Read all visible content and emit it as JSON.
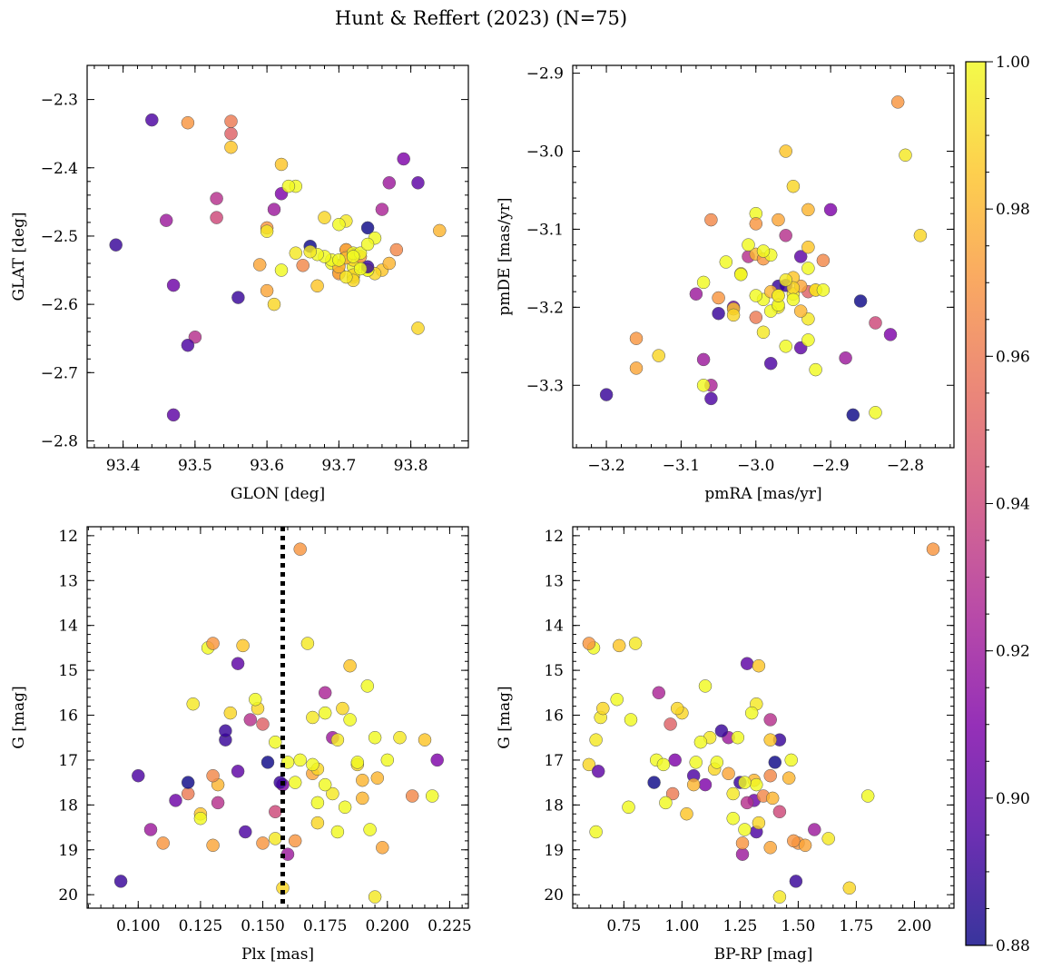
{
  "chart_data": {
    "type": "scatter",
    "title": "Hunt & Reffert (2023) (N=75)",
    "colorbar": {
      "vmin": 0.88,
      "vmax": 1.0,
      "cmap": "plasma",
      "ticks": [
        0.88,
        0.9,
        0.92,
        0.94,
        0.96,
        0.98,
        1.0
      ],
      "tick_labels": [
        "0.88",
        "0.90",
        "0.92",
        "0.94",
        "0.96",
        "0.98",
        "1.00"
      ]
    },
    "stars": {
      "c": [
        0.89,
        0.895,
        0.92,
        0.97,
        0.905,
        0.96,
        0.985,
        0.975,
        0.93,
        0.89,
        0.9,
        0.895,
        0.93,
        0.95,
        0.88,
        0.94,
        0.91,
        0.92,
        0.97,
        0.995,
        0.975,
        0.99,
        0.925,
        0.92,
        1.0,
        1.0,
        0.985,
        0.99,
        0.98,
        1.0,
        0.995,
        0.975,
        1.0,
        0.995,
        0.965,
        0.985,
        0.91,
        0.88,
        0.995,
        1.0,
        1.0,
        0.97,
        0.98,
        0.89,
        0.99,
        0.9,
        0.985,
        0.99,
        0.97,
        1.0,
        0.89,
        0.99,
        0.97,
        0.995,
        1.0,
        1.0,
        0.995,
        0.99,
        1.0,
        0.98,
        1.0,
        1.0,
        1.0,
        1.0,
        0.995,
        1.0,
        1.0,
        1.0,
        1.0,
        0.995,
        1.0,
        0.98,
        0.99,
        1.0,
        0.965
      ],
      "glon": [
        93.39,
        93.44,
        93.46,
        93.49,
        93.47,
        93.55,
        93.55,
        93.59,
        93.5,
        93.56,
        93.47,
        93.49,
        93.53,
        93.55,
        93.66,
        93.53,
        93.62,
        93.61,
        93.6,
        93.6,
        93.6,
        93.61,
        93.76,
        93.77,
        93.72,
        93.73,
        93.76,
        93.75,
        93.77,
        93.74,
        93.7,
        93.7,
        93.69,
        93.71,
        93.65,
        93.62,
        93.79,
        93.74,
        93.71,
        93.72,
        93.75,
        93.7,
        93.7,
        93.72,
        93.72,
        93.81,
        93.67,
        93.72,
        93.71,
        93.74,
        93.74,
        93.72,
        93.73,
        93.71,
        93.64,
        93.62,
        93.64,
        93.68,
        93.69,
        93.71,
        93.7,
        93.72,
        93.73,
        93.74,
        93.71,
        93.72,
        93.73,
        93.68,
        93.67,
        93.66,
        93.7,
        93.84,
        93.81,
        93.63,
        93.78
      ],
      "glat": [
        -2.513,
        -2.33,
        -2.477,
        -2.334,
        -2.572,
        -2.332,
        -2.37,
        -2.542,
        -2.648,
        -2.59,
        -2.762,
        -2.66,
        -2.445,
        -2.35,
        -2.515,
        -2.473,
        -2.438,
        -2.461,
        -2.488,
        -2.493,
        -2.58,
        -2.6,
        -2.461,
        -2.422,
        -2.56,
        -2.545,
        -2.55,
        -2.555,
        -2.54,
        -2.55,
        -2.553,
        -2.543,
        -2.54,
        -2.52,
        -2.543,
        -2.395,
        -2.387,
        -2.488,
        -2.53,
        -2.545,
        -2.503,
        -2.555,
        -2.545,
        -2.527,
        -2.535,
        -2.422,
        -2.573,
        -2.557,
        -2.52,
        -2.55,
        -2.545,
        -2.565,
        -2.53,
        -2.478,
        -2.427,
        -2.55,
        -2.525,
        -2.473,
        -2.535,
        -2.532,
        -2.535,
        -2.525,
        -2.525,
        -2.512,
        -2.56,
        -2.53,
        -2.548,
        -2.53,
        -2.527,
        -2.523,
        -2.483,
        -2.492,
        -2.635,
        -2.427,
        -2.52
      ],
      "pmra": [
        -3.2,
        -3.06,
        -3.07,
        -3.05,
        -3.03,
        -3.0,
        -2.96,
        -2.97,
        -2.96,
        -2.97,
        -2.94,
        -2.98,
        -3.01,
        -2.93,
        -2.86,
        -2.84,
        -2.82,
        -2.88,
        -2.81,
        -2.8,
        -3.16,
        -3.13,
        -3.06,
        -3.08,
        -3.07,
        -3.04,
        -3.03,
        -3.02,
        -3.0,
        -2.99,
        -2.95,
        -2.94,
        -2.93,
        -2.92,
        -2.91,
        -2.95,
        -2.9,
        -2.87,
        -2.97,
        -3.0,
        -3.01,
        -2.99,
        -2.98,
        -2.96,
        -2.95,
        -2.94,
        -2.93,
        -2.92,
        -3.16,
        -3.07,
        -3.05,
        -3.03,
        -3.0,
        -2.99,
        -2.98,
        -2.97,
        -2.96,
        -2.95,
        -2.93,
        -2.93,
        -2.92,
        -2.91,
        -2.95,
        -2.97,
        -2.93,
        -3.0,
        -2.98,
        -3.02,
        -2.99,
        -2.97,
        -2.96,
        -2.94,
        -2.78,
        -2.84,
        -3.06
      ],
      "pmde": [
        -3.312,
        -3.317,
        -3.267,
        -3.188,
        -3.2,
        -3.213,
        -3.0,
        -3.088,
        -3.108,
        -3.173,
        -3.252,
        -3.272,
        -3.135,
        -3.18,
        -3.192,
        -3.22,
        -3.235,
        -3.265,
        -2.937,
        -3.005,
        -3.278,
        -3.262,
        -3.3,
        -3.183,
        -3.168,
        -3.142,
        -3.202,
        -3.157,
        -3.132,
        -3.19,
        -3.183,
        -3.173,
        -3.15,
        -3.178,
        -3.14,
        -3.162,
        -3.075,
        -3.338,
        -3.2,
        -3.08,
        -3.12,
        -3.138,
        -3.18,
        -3.172,
        -3.175,
        -3.135,
        -3.123,
        -3.178,
        -3.24,
        -3.3,
        -3.208,
        -3.21,
        -3.093,
        -3.232,
        -3.205,
        -3.185,
        -3.165,
        -3.045,
        -3.242,
        -3.075,
        -3.28,
        -3.178,
        -3.19,
        -3.197,
        -3.215,
        -3.185,
        -3.133,
        -3.158,
        -3.128,
        -3.185,
        -3.25,
        -3.205,
        -3.108,
        -3.335,
        -3.088
      ],
      "plx": [
        0.093,
        0.1,
        0.105,
        0.11,
        0.115,
        0.12,
        0.125,
        0.13,
        0.132,
        0.135,
        0.14,
        0.143,
        0.145,
        0.15,
        0.152,
        0.155,
        0.158,
        0.16,
        0.163,
        0.168,
        0.17,
        0.172,
        0.175,
        0.178,
        0.18,
        0.183,
        0.185,
        0.188,
        0.19,
        0.193,
        0.195,
        0.198,
        0.2,
        0.205,
        0.21,
        0.215,
        0.22,
        0.12,
        0.122,
        0.125,
        0.128,
        0.13,
        0.132,
        0.135,
        0.137,
        0.14,
        0.142,
        0.148,
        0.15,
        0.155,
        0.157,
        0.158,
        0.165,
        0.17,
        0.172,
        0.175,
        0.178,
        0.182,
        0.185,
        0.19,
        0.192,
        0.195,
        0.218,
        0.147,
        0.155,
        0.165,
        0.17,
        0.16,
        0.175,
        0.18,
        0.188,
        0.196,
        0.172,
        0.163,
        0.13
      ],
      "g": [
        19.7,
        17.35,
        18.55,
        18.85,
        17.9,
        17.75,
        18.2,
        18.9,
        17.95,
        16.55,
        14.85,
        18.6,
        16.1,
        16.2,
        17.05,
        18.15,
        17.55,
        19.1,
        18.8,
        14.4,
        17.3,
        17.2,
        15.5,
        16.5,
        18.6,
        18.05,
        14.9,
        17.1,
        17.45,
        18.55,
        20.05,
        18.95,
        17.0,
        16.5,
        17.8,
        16.55,
        17.0,
        17.5,
        15.75,
        18.3,
        14.5,
        14.4,
        17.55,
        16.35,
        15.95,
        17.25,
        14.45,
        15.85,
        18.85,
        16.6,
        17.5,
        19.85,
        12.3,
        16.05,
        17.95,
        15.95,
        17.75,
        15.85,
        16.1,
        17.85,
        15.35,
        16.5,
        17.8,
        15.65,
        18.75,
        17.0,
        17.1,
        17.05,
        17.55,
        16.55,
        17.05,
        17.4,
        18.4,
        17.5,
        17.35
      ],
      "bprp": [
        1.49,
        1.05,
        1.57,
        1.5,
        1.31,
        0.96,
        1.02,
        1.53,
        1.28,
        1.42,
        1.28,
        1.32,
        1.38,
        0.95,
        1.4,
        1.42,
        1.1,
        1.26,
        1.48,
        0.8,
        1.2,
        1.14,
        0.9,
        1.2,
        0.63,
        0.77,
        1.33,
        0.6,
        1.31,
        1.27,
        1.42,
        1.38,
        1.47,
        1.12,
        1.35,
        1.38,
        0.97,
        0.88,
        1.32,
        1.22,
        0.62,
        0.6,
        1.05,
        1.17,
        1.0,
        0.64,
        0.73,
        0.98,
        1.26,
        1.08,
        1.25,
        1.72,
        2.08,
        0.65,
        0.93,
        1.3,
        1.22,
        0.66,
        0.78,
        1.39,
        1.1,
        1.24,
        1.8,
        0.72,
        1.63,
        0.89,
        0.92,
        1.06,
        1.32,
        0.63,
        1.15,
        1.46,
        1.33,
        1.27,
        1.38
      ]
    },
    "panels": [
      {
        "id": "sky",
        "type": "scatter",
        "x_key": "glon",
        "y_key": "glat",
        "xlabel": "GLON [deg]",
        "ylabel": "GLAT [deg]",
        "xlim": [
          93.35,
          93.88
        ],
        "ylim": [
          -2.81,
          -2.25
        ],
        "yinvert": false,
        "xticks": [
          93.4,
          93.5,
          93.6,
          93.7,
          93.8
        ],
        "xtick_labels": [
          "93.4",
          "93.5",
          "93.6",
          "93.7",
          "93.8"
        ],
        "yticks": [
          -2.3,
          -2.4,
          -2.5,
          -2.6,
          -2.7,
          -2.8
        ],
        "ytick_labels": [
          "−2.3",
          "−2.4",
          "−2.5",
          "−2.6",
          "−2.7",
          "−2.8"
        ]
      },
      {
        "id": "pm",
        "type": "scatter",
        "x_key": "pmra",
        "y_key": "pmde",
        "xlabel": "pmRA [mas/yr]",
        "ylabel": "pmDE [mas/yr]",
        "xlim": [
          -3.245,
          -2.735
        ],
        "ylim": [
          -3.38,
          -2.89
        ],
        "yinvert": false,
        "xticks": [
          -3.2,
          -3.1,
          -3.0,
          -2.9,
          -2.8
        ],
        "xtick_labels": [
          "−3.2",
          "−3.1",
          "−3.0",
          "−2.9",
          "−2.8"
        ],
        "yticks": [
          -2.9,
          -3.0,
          -3.1,
          -3.2,
          -3.3
        ],
        "ytick_labels": [
          "−2.9",
          "−3.0",
          "−3.1",
          "−3.2",
          "−3.3"
        ]
      },
      {
        "id": "plx",
        "type": "scatter",
        "x_key": "plx",
        "y_key": "g",
        "xlabel": "Plx [mas]",
        "ylabel": "G [mag]",
        "xlim": [
          0.0795,
          0.2325
        ],
        "ylim": [
          11.8,
          20.3
        ],
        "yinvert": true,
        "vline": 0.158,
        "xticks": [
          0.1,
          0.125,
          0.15,
          0.175,
          0.2,
          0.225
        ],
        "xtick_labels": [
          "0.100",
          "0.125",
          "0.150",
          "0.175",
          "0.200",
          "0.225"
        ],
        "yticks": [
          12,
          13,
          14,
          15,
          16,
          17,
          18,
          19,
          20
        ],
        "ytick_labels": [
          "12",
          "13",
          "14",
          "15",
          "16",
          "17",
          "18",
          "19",
          "20"
        ]
      },
      {
        "id": "cmd",
        "type": "scatter",
        "x_key": "bprp",
        "y_key": "g",
        "xlabel": "BP-RP [mag]",
        "ylabel": "G [mag]",
        "xlim": [
          0.53,
          2.17
        ],
        "ylim": [
          11.8,
          20.3
        ],
        "yinvert": true,
        "xticks": [
          0.75,
          1.0,
          1.25,
          1.5,
          1.75,
          2.0
        ],
        "xtick_labels": [
          "0.75",
          "1.00",
          "1.25",
          "1.50",
          "1.75",
          "2.00"
        ],
        "yticks": [
          12,
          13,
          14,
          15,
          16,
          17,
          18,
          19,
          20
        ],
        "ytick_labels": [
          "12",
          "13",
          "14",
          "15",
          "16",
          "17",
          "18",
          "19",
          "20"
        ]
      }
    ]
  }
}
